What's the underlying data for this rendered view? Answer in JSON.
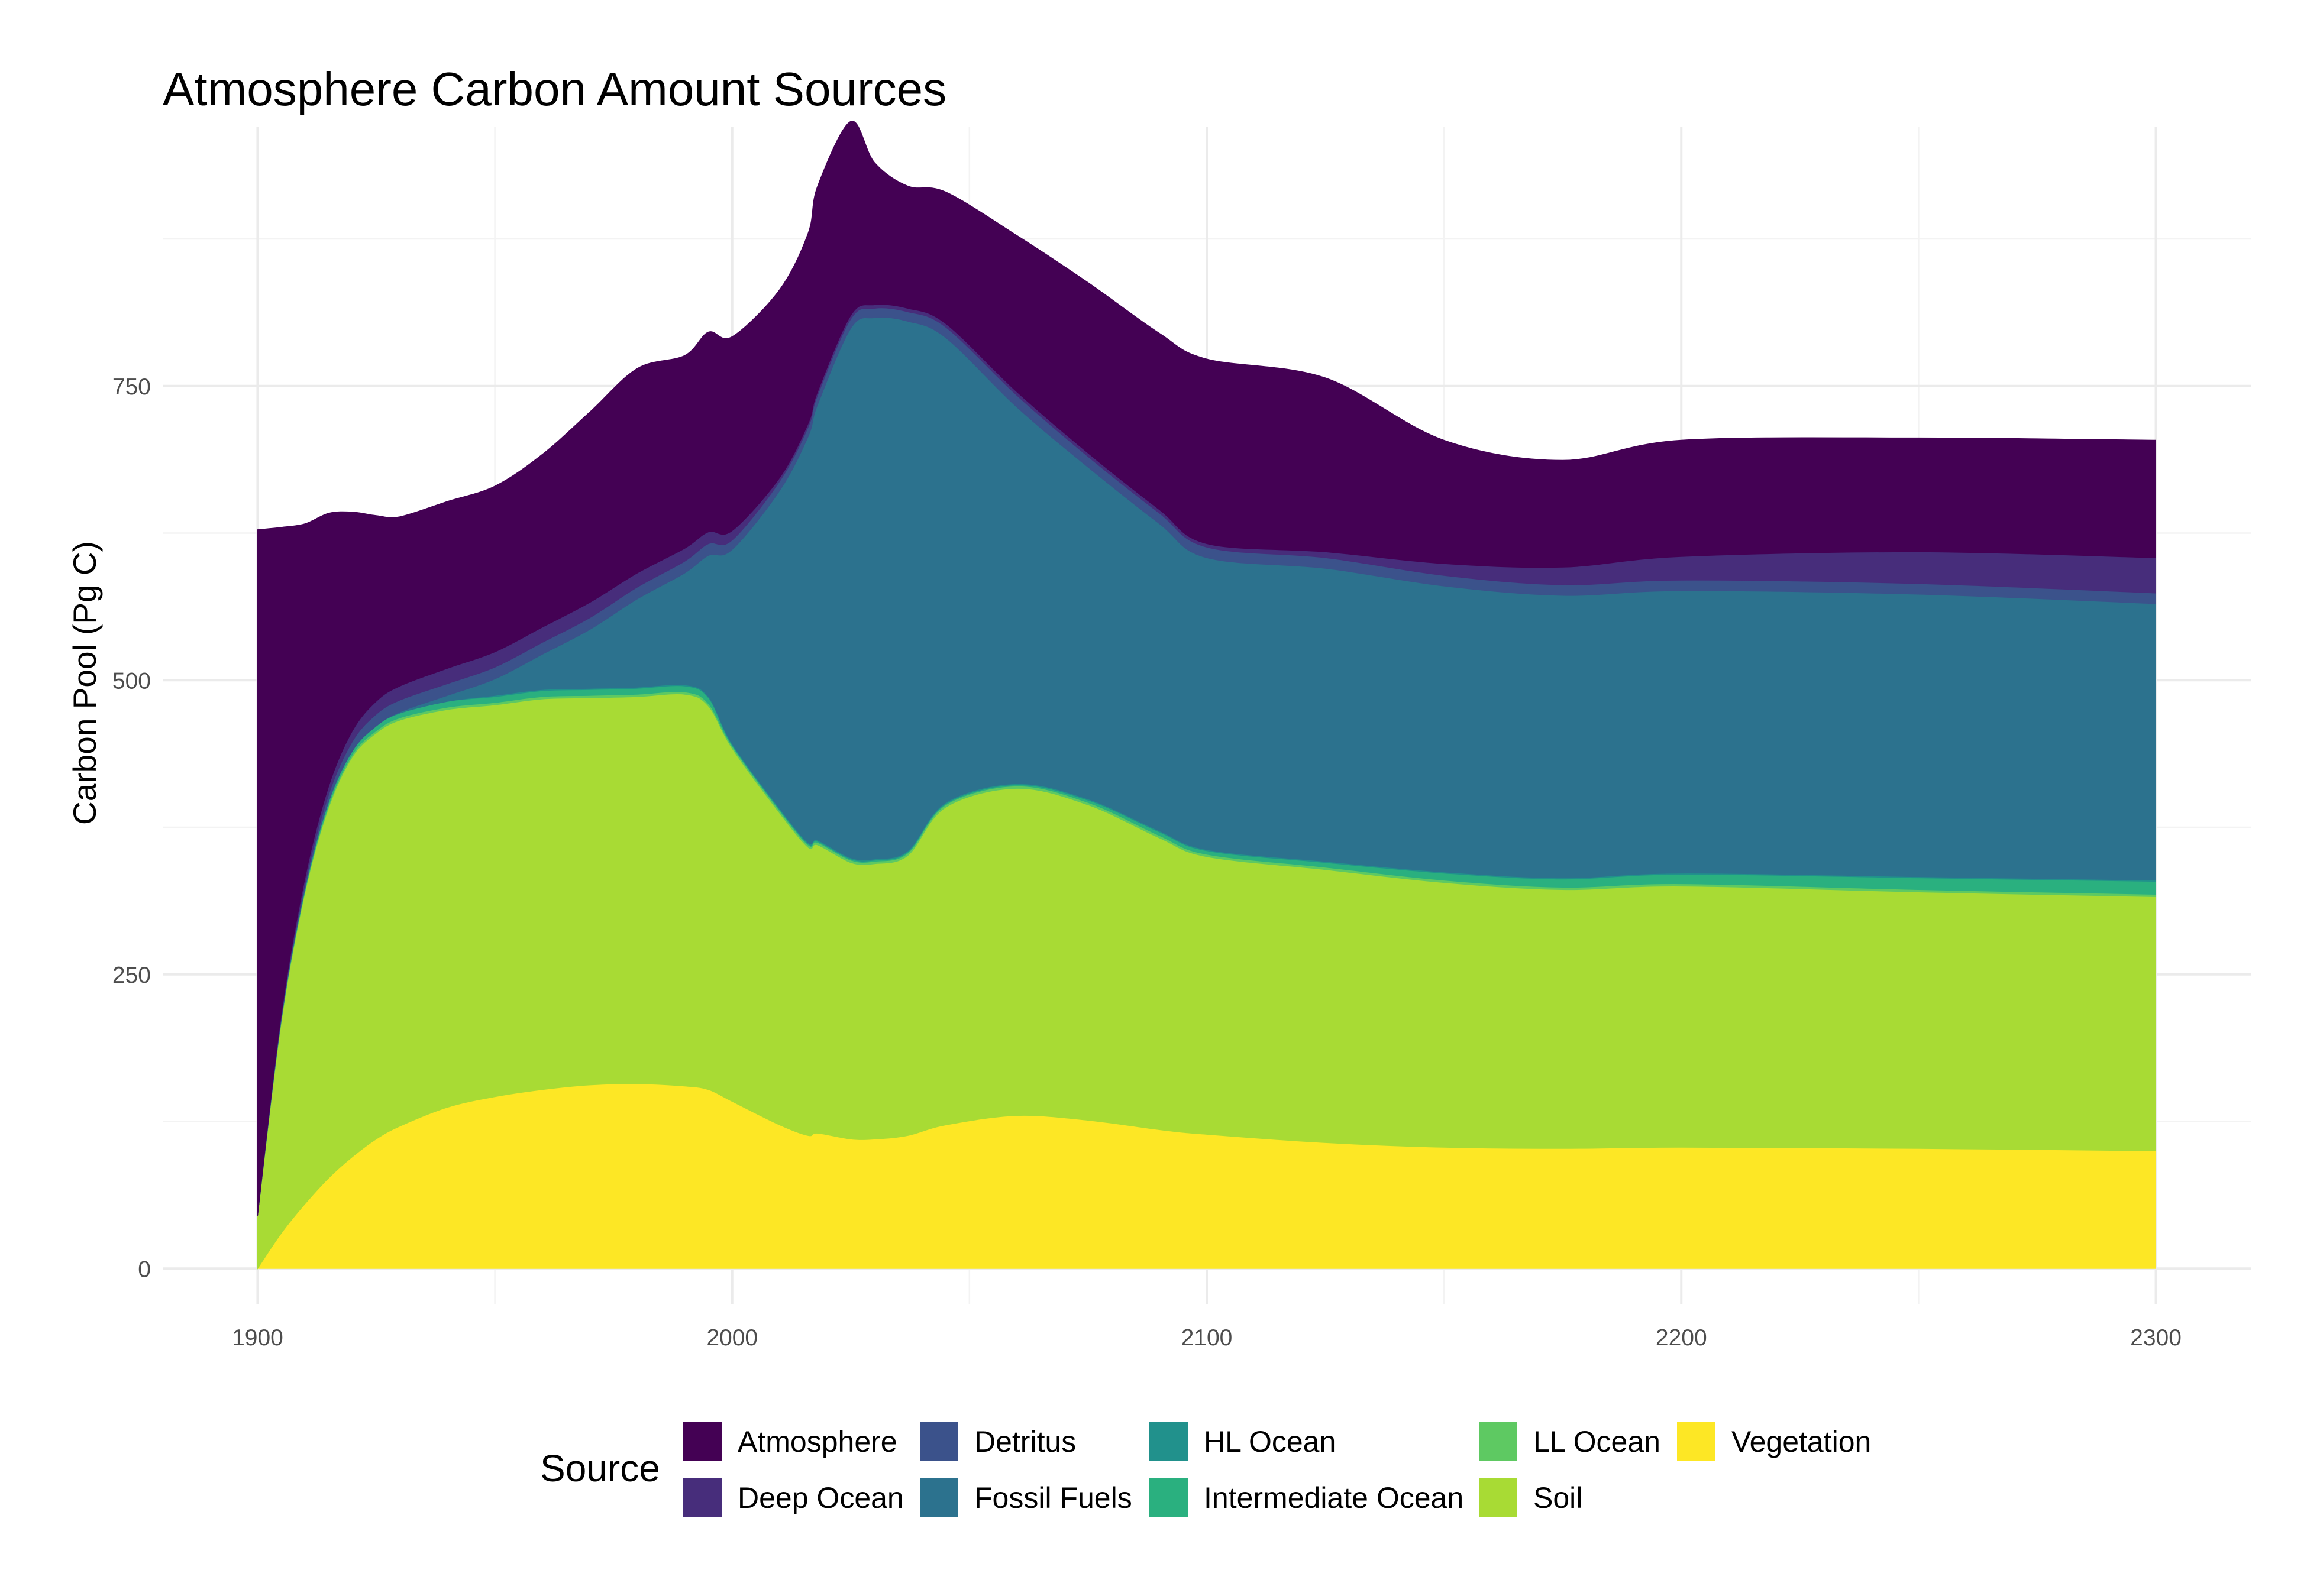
{
  "chart_data": {
    "type": "area",
    "stacked": true,
    "title": "Atmosphere Carbon Amount Sources",
    "xlabel": "",
    "ylabel": "Carbon Pool (Pg C)",
    "xlim": [
      1880,
      2320
    ],
    "ylim": [
      -30,
      970
    ],
    "x_ticks": [
      1900,
      2000,
      2100,
      2200,
      2300
    ],
    "y_ticks": [
      0,
      250,
      500,
      750
    ],
    "grid": true,
    "legend_title": "Source",
    "legend_position": "bottom",
    "x": [
      1900,
      1905,
      1910,
      1915,
      1920,
      1925,
      1930,
      1940,
      1950,
      1960,
      1970,
      1980,
      1990,
      1995,
      2000,
      2010,
      2016,
      2018,
      2025,
      2030,
      2037,
      2045,
      2060,
      2075,
      2090,
      2100,
      2125,
      2150,
      2175,
      2200,
      2250,
      2300
    ],
    "series": [
      {
        "name": "Vegetation",
        "color": "#FDE725",
        "values": [
          0,
          30,
          55,
          77,
          95,
          110,
          121,
          137,
          146,
          152,
          156,
          157,
          155,
          152,
          142,
          122,
          113,
          115,
          110,
          110,
          113,
          122,
          130,
          126,
          118,
          114,
          107,
          103,
          102,
          103,
          102,
          100
        ]
      },
      {
        "name": "Soil",
        "color": "#A8DB34",
        "values": [
          45,
          180,
          265,
          315,
          340,
          345,
          345,
          338,
          333,
          332,
          329,
          329,
          333,
          326,
          300,
          265,
          245,
          245,
          235,
          234,
          238,
          270,
          278,
          268,
          248,
          236,
          232,
          225,
          220,
          222,
          218,
          216
        ]
      },
      {
        "name": "LL Ocean",
        "color": "#5EC962",
        "values": [
          0,
          1,
          1,
          2,
          2,
          2,
          2,
          2,
          2,
          2,
          2,
          2,
          2,
          2,
          2,
          2,
          2,
          2,
          2,
          2,
          2,
          2,
          2,
          2,
          2,
          2,
          2,
          2,
          2,
          2,
          2,
          2
        ]
      },
      {
        "name": "Intermediate Ocean",
        "color": "#2AB07F",
        "values": [
          0,
          1,
          2,
          3,
          3,
          4,
          4,
          5,
          5,
          5,
          5,
          5,
          5,
          5,
          1,
          1,
          1,
          1,
          1,
          1,
          1,
          1,
          1,
          2,
          3,
          3,
          4,
          6,
          7,
          8,
          10,
          11
        ]
      },
      {
        "name": "HL Ocean",
        "color": "#21918C",
        "values": [
          0,
          0,
          0,
          0,
          0,
          0,
          0,
          0,
          1,
          1,
          1,
          1,
          1,
          1,
          1,
          1,
          1,
          1,
          1,
          1,
          1,
          1,
          1,
          1,
          1,
          1,
          1,
          1,
          1,
          1,
          1,
          1
        ]
      },
      {
        "name": "Fossil Fuels",
        "color": "#2C728E",
        "values": [
          0,
          0,
          0,
          0,
          0,
          0,
          1,
          5,
          14,
          30,
          50,
          75,
          95,
          120,
          165,
          270,
          345,
          370,
          450,
          460,
          450,
          395,
          320,
          282,
          261,
          248,
          249,
          243,
          240,
          240,
          240,
          235
        ]
      },
      {
        "name": "Detritus",
        "color": "#3B528B",
        "values": [
          0,
          2,
          4,
          6,
          8,
          10,
          10,
          10,
          10,
          10,
          10,
          10,
          10,
          10,
          8,
          8,
          8,
          8,
          8,
          8,
          8,
          9,
          10,
          9,
          9,
          9,
          9,
          9,
          9,
          9,
          9,
          9
        ]
      },
      {
        "name": "Deep Ocean",
        "color": "#472D7B",
        "values": [
          0,
          2,
          5,
          7,
          9,
          11,
          12,
          13,
          13,
          13,
          13,
          12,
          11,
          10,
          8,
          3,
          3,
          3,
          3,
          3,
          3,
          3,
          3,
          3,
          3,
          3,
          5,
          10,
          15,
          20,
          27,
          30
        ]
      },
      {
        "name": "Atmosphere",
        "color": "#440154",
        "values": [
          583,
          414,
          301,
          232,
          186,
          158,
          144,
          142,
          141,
          147,
          162,
          174,
          164,
          170,
          165,
          160,
          162,
          175,
          165,
          121,
          104,
          112,
          133,
          145,
          150,
          157,
          148,
          105,
          91,
          99,
          97,
          100
        ]
      }
    ],
    "legend_order": [
      "Atmosphere",
      "Deep Ocean",
      "Detritus",
      "Fossil Fuels",
      "HL Ocean",
      "Intermediate Ocean",
      "LL Ocean",
      "Soil",
      "Vegetation"
    ]
  }
}
